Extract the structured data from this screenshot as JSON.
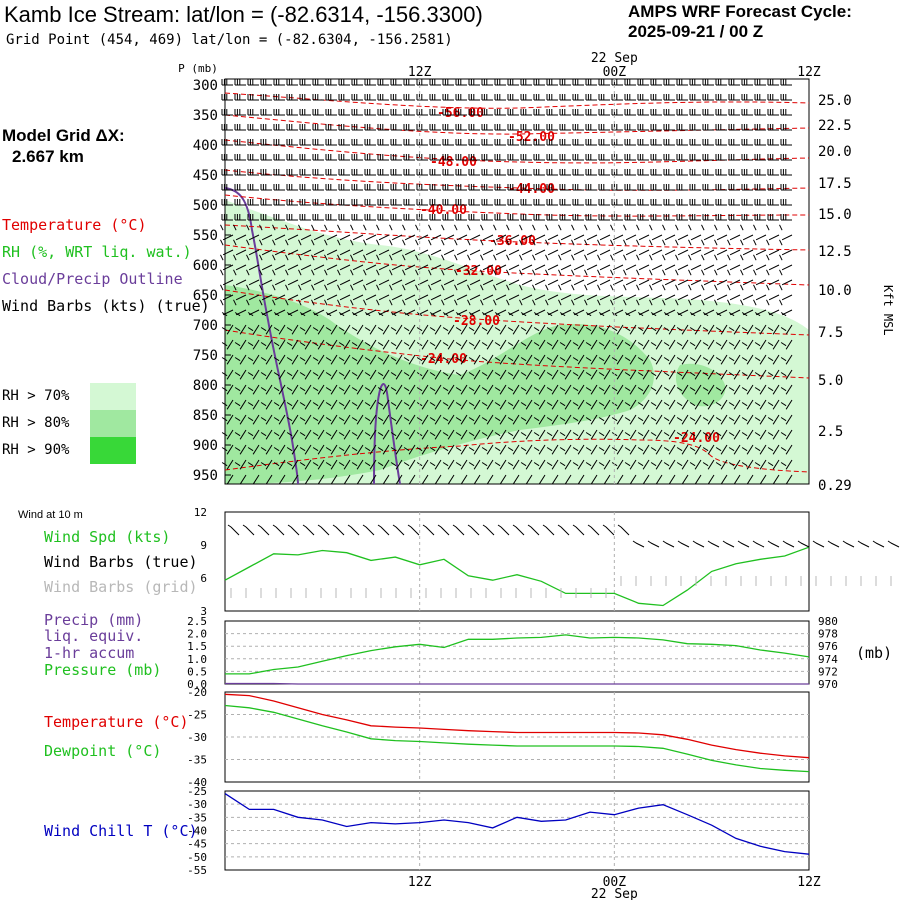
{
  "header": {
    "title": "Kamb Ice Stream:  lat/lon = (-82.6314, -156.3300)",
    "grid_point": "Grid Point (454, 469) lat/lon = (-82.6304, -156.2581)",
    "cycle_label": "AMPS WRF Forecast Cycle:",
    "cycle_value": "2025-09-21 / 00  Z"
  },
  "model_grid": {
    "label": "Model Grid ΔX:",
    "value": "2.667 km"
  },
  "legend": {
    "temperature": "Temperature (°C)",
    "rh": "RH (%, WRT liq. wat.)",
    "cloud": "Cloud/Precip Outline",
    "wind": "Wind Barbs (kts) (true)"
  },
  "rh_legend": [
    {
      "label": "RH > 70%",
      "color": "#d4f8d4"
    },
    {
      "label": "RH > 80%",
      "color": "#a0e8a0"
    },
    {
      "label": "RH > 90%",
      "color": "#38d838"
    }
  ],
  "colors": {
    "temperature": "#e00000",
    "rh": "#20c020",
    "cloud": "#6a3d9a",
    "windchill": "#0000c0",
    "grid": "#b0b0b0"
  },
  "time_axis": {
    "labels": [
      "12Z",
      "00Z",
      "12Z"
    ],
    "date": "22 Sep"
  },
  "chart_data": [
    {
      "type": "heatmap",
      "name": "cross-section",
      "ylabel": "P (mb)",
      "y2label": "Kft MSL",
      "pressure_levels": [
        300,
        350,
        400,
        450,
        500,
        550,
        600,
        650,
        700,
        750,
        800,
        850,
        900,
        950
      ],
      "height_ticks_kft": [
        "25.0",
        "22.5",
        "20.0",
        "17.5",
        "15.0",
        "12.5",
        "10.0",
        "7.5",
        "5.0",
        "2.5",
        "0.29"
      ],
      "isotherm_labels": [
        "-56.00",
        "-52.00",
        "-48.00",
        "-44.00",
        "-40.00",
        "-36.00",
        "-32.00",
        "-28.00",
        "-24.00",
        "-24.00"
      ],
      "x_hours": [
        0,
        36
      ],
      "y_range": [
        300,
        975
      ]
    },
    {
      "type": "line",
      "name": "wind-10m",
      "title": "Wind at 10 m",
      "labels": [
        "Wind Spd (kts)",
        "Wind Barbs (true)",
        "Wind Barbs (grid)"
      ],
      "yticks": [
        "12",
        "9",
        "6",
        "3"
      ],
      "ylim": [
        3,
        12
      ],
      "x": [
        0,
        1.5,
        3,
        4.5,
        6,
        7.5,
        9,
        10.5,
        12,
        13.5,
        15,
        16.5,
        18,
        19.5,
        21,
        22.5,
        24,
        25.5,
        27,
        28.5,
        30,
        31.5,
        33,
        34.5,
        36
      ],
      "values": [
        5.8,
        7,
        8.2,
        8.1,
        8.5,
        8.3,
        7.6,
        7.9,
        7.2,
        7.7,
        6.2,
        5.8,
        6.3,
        5.7,
        4.6,
        4.6,
        4.6,
        3.7,
        3.5,
        4.9,
        6.6,
        7.3,
        7.7,
        8.0,
        8.8
      ]
    },
    {
      "type": "line",
      "name": "precip-pressure",
      "labels": [
        "Precip (mm)",
        "liq. equiv.",
        "1-hr accum",
        "Pressure (mb)"
      ],
      "yticks_left": [
        "2.5",
        "2.0",
        "1.5",
        "1.0",
        "0.5",
        "0.0"
      ],
      "yticks_right": [
        "980",
        "978",
        "976",
        "974",
        "972",
        "970"
      ],
      "y2label": "(mb)",
      "ylim": [
        0,
        2.5
      ],
      "y2lim": [
        970,
        980
      ],
      "x": [
        0,
        1.5,
        3,
        4.5,
        6,
        7.5,
        9,
        10.5,
        12,
        13.5,
        15,
        16.5,
        18,
        19.5,
        21,
        22.5,
        24,
        25.5,
        27,
        28.5,
        30,
        31.5,
        33,
        34.5,
        36
      ],
      "pressure": [
        971.6,
        971.6,
        972.3,
        972.7,
        973.6,
        974.5,
        975.3,
        975.9,
        976.3,
        975.8,
        977.1,
        977.1,
        977.3,
        977.4,
        977.8,
        977.3,
        977.4,
        977.3,
        977.0,
        976.4,
        976.3,
        976.1,
        975.4,
        974.9,
        974.3
      ],
      "precip": [
        0.02,
        0.02,
        0.02,
        0,
        0,
        0,
        0,
        0,
        0,
        0,
        0,
        0,
        0,
        0,
        0,
        0,
        0,
        0,
        0,
        0,
        0,
        0,
        0,
        0,
        0
      ]
    },
    {
      "type": "line",
      "name": "temperature-dewpoint",
      "labels": [
        "Temperature (°C)",
        "Dewpoint (°C)"
      ],
      "yticks": [
        "-20",
        "-25",
        "-30",
        "-35",
        "-40"
      ],
      "ylim": [
        -40,
        -20
      ],
      "x": [
        0,
        1.5,
        3,
        4.5,
        6,
        7.5,
        9,
        10.5,
        12,
        13.5,
        15,
        16.5,
        18,
        19.5,
        21,
        22.5,
        24,
        25.5,
        27,
        28.5,
        30,
        31.5,
        33,
        34.5,
        36
      ],
      "series": [
        {
          "name": "Temperature",
          "values": [
            -20.5,
            -20.8,
            -22,
            -23.5,
            -25,
            -26.2,
            -27.5,
            -27.8,
            -28,
            -28.3,
            -28.6,
            -28.8,
            -29,
            -29,
            -29,
            -29,
            -29,
            -29.1,
            -29.5,
            -30.5,
            -31.8,
            -32.8,
            -33.6,
            -34.2,
            -34.6
          ]
        },
        {
          "name": "Dewpoint",
          "values": [
            -23,
            -23.5,
            -24.5,
            -26,
            -27.5,
            -28.9,
            -30.4,
            -30.8,
            -31,
            -31.3,
            -31.6,
            -31.8,
            -32,
            -32,
            -32,
            -32,
            -32,
            -32.1,
            -32.5,
            -33.8,
            -35.2,
            -36.2,
            -37,
            -37.4,
            -37.7
          ]
        }
      ]
    },
    {
      "type": "line",
      "name": "wind-chill",
      "labels": [
        "Wind Chill T (°C)"
      ],
      "yticks": [
        "-25",
        "-30",
        "-35",
        "-40",
        "-45",
        "-50",
        "-55"
      ],
      "ylim": [
        -55,
        -25
      ],
      "x": [
        0,
        1.5,
        3,
        4.5,
        6,
        7.5,
        9,
        10.5,
        12,
        13.5,
        15,
        16.5,
        18,
        19.5,
        21,
        22.5,
        24,
        25.5,
        27,
        28.5,
        30,
        31.5,
        33,
        34.5,
        36
      ],
      "values": [
        -26,
        -32,
        -32,
        -35,
        -36,
        -38.5,
        -37,
        -37.5,
        -37,
        -36,
        -37,
        -39,
        -35,
        -36.5,
        -36,
        -33,
        -34,
        -31.5,
        -30.2,
        -34,
        -38,
        -43,
        -46,
        -48,
        -49
      ]
    }
  ]
}
